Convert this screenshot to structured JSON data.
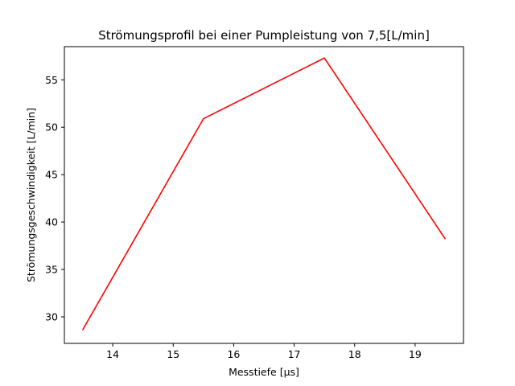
{
  "chart_data": {
    "type": "line",
    "title": "Strömungsprofil bei einer Pumpleistung von 7,5[L/min]",
    "xlabel": "Messtiefe [µs]",
    "ylabel": "Strömungsgeschwindigkeit [L/min]",
    "xlim": [
      13.2,
      19.8
    ],
    "ylim": [
      27.2,
      58.5
    ],
    "xticks": [
      14,
      15,
      16,
      17,
      18,
      19
    ],
    "yticks": [
      30,
      35,
      40,
      45,
      50,
      55
    ],
    "grid": false,
    "series": [
      {
        "color": "#ff0000",
        "x": [
          13.5,
          15.5,
          17.5,
          19.5
        ],
        "y": [
          28.6,
          50.9,
          57.3,
          38.2
        ]
      }
    ]
  }
}
